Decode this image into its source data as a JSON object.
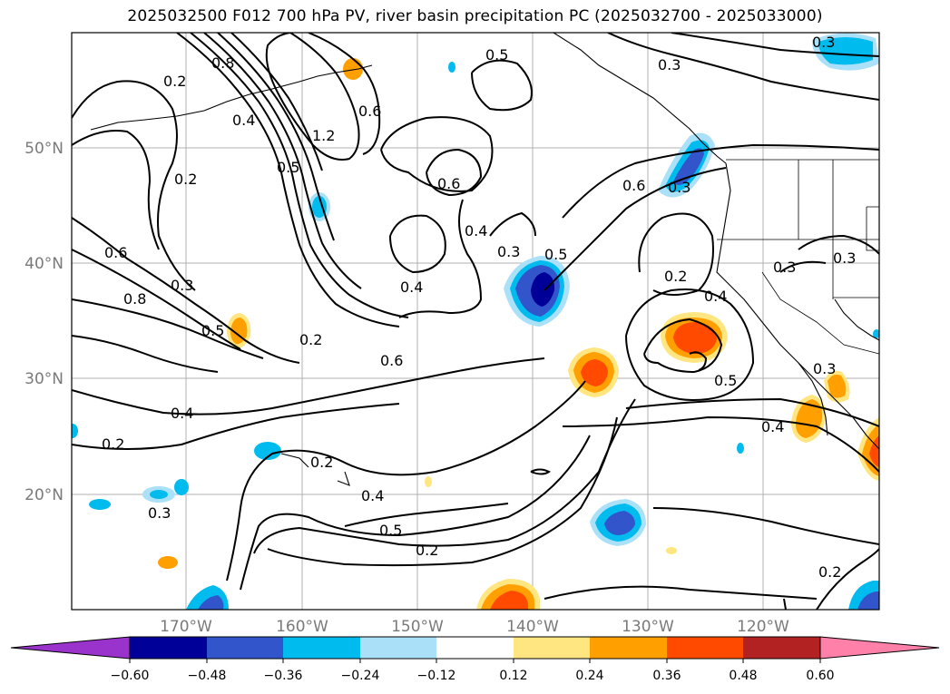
{
  "title": "2025032500 F012 700 hPa PV, river basin precipitation PC (2025032700 - 2025033000)",
  "map": {
    "lat_labels": [
      "50°N",
      "40°N",
      "30°N",
      "20°N"
    ],
    "lon_labels": [
      "170°W",
      "160°W",
      "150°W",
      "140°W",
      "130°W",
      "120°W"
    ],
    "contour_labels": [
      "0.3",
      "0.5",
      "0.3",
      "0.8",
      "0.2",
      "0.4",
      "1.2",
      "0.6",
      "0.5",
      "0.6",
      "0.2",
      "0.4",
      "0.3",
      "0.5",
      "0.6",
      "0.3",
      "0.6",
      "0.3",
      "0.4",
      "0.2",
      "0.3",
      "0.4",
      "0.3",
      "0.8",
      "0.5",
      "0.2",
      "0.6",
      "0.4",
      "0.5",
      "0.3",
      "0.4",
      "0.2",
      "0.2",
      "0.4",
      "0.5",
      "0.2",
      "0.3",
      "0.2"
    ]
  },
  "colorbar": {
    "ticks": [
      "−0.60",
      "−0.48",
      "−0.36",
      "−0.24",
      "−0.12",
      "0.12",
      "0.24",
      "0.36",
      "0.48",
      "0.60"
    ],
    "colors": [
      "#9933cc",
      "#000099",
      "#3355cc",
      "#00bbee",
      "#aae0f8",
      "#ffffff",
      "#ffe680",
      "#ff9f00",
      "#ff4a00",
      "#b22222",
      "#ff80a8"
    ]
  }
}
